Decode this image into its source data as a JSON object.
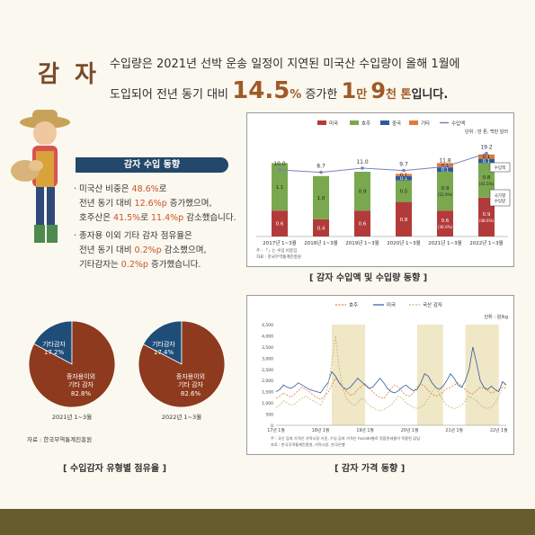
{
  "header": {
    "title": "감 자",
    "line1": "수입량은 2021년 선박 운송 일정이 지연된 미국산 수입량이 올해 1월에",
    "line2_prefix": "도입되어 전년 동기 대비",
    "pct": "14.5",
    "pct_unit": "%",
    "mid_text": "증가한",
    "num1": "1",
    "unit1": "만",
    "num2": "9",
    "unit2": "천 톤",
    "suffix": "입니다."
  },
  "trend": {
    "heading": "감자 수입 동향",
    "bullet1_a": "미국산 비중은 ",
    "bullet1_b": "48.6%",
    "bullet1_c": "로",
    "bullet1_d": "전년 동기 대비 ",
    "bullet1_e": "12.6%p",
    "bullet1_f": " 증가했으며,",
    "bullet1_g": "호주산은 ",
    "bullet1_h": "41.5%",
    "bullet1_i": "로 ",
    "bullet1_j": "11.4%p",
    "bullet1_k": " 감소했습니다.",
    "bullet2_a": "종자용 이외 기타 감자 점유율은",
    "bullet2_b": "전년 동기 대비 ",
    "bullet2_c": "0.2%p",
    "bullet2_d": " 감소했으며,",
    "bullet2_e": "기타감자는 ",
    "bullet2_f": "0.2%p",
    "bullet2_g": " 증가했습니다."
  },
  "captions": {
    "top_chart": "[ 감자 수입액 및 수입량 동향 ]",
    "pies": "[ 수입감자 유형별 점유율 ]",
    "price": "[ 감자 가격 동향 ]"
  },
  "colors": {
    "us": "#b33a3a",
    "au": "#7aa84f",
    "cn": "#2e5a9a",
    "other": "#e07b39",
    "volume": "#7d80b8",
    "pie_main": "#8e3a1e",
    "pie_other": "#1e4d78",
    "domestic": "#c8b56a",
    "shade": "#efe7c6"
  },
  "chart_data": [
    {
      "type": "bar",
      "unit_note": "단위 : 만 톤, 백만 달러",
      "legend": [
        "미국",
        "호주",
        "중국",
        "기타",
        "수입액"
      ],
      "categories": [
        "2017년 1~3월",
        "2018년 1~3월",
        "2019년 1~3월",
        "2020년 1~3월",
        "2021년 1~3월",
        "2022년 1~3월"
      ],
      "series": [
        {
          "name": "미국",
          "values": [
            0.6,
            0.4,
            0.6,
            0.8,
            0.6,
            0.9
          ],
          "labels": [
            "0.6",
            "0.4",
            "0.6",
            "0.8",
            "0.6\n(36.0%)",
            "0.9\n(48.6%)"
          ]
        },
        {
          "name": "호주",
          "values": [
            1.1,
            1.0,
            0.9,
            0.5,
            0.9,
            0.8
          ],
          "labels": [
            "1.1",
            "1.0",
            "0.9",
            "0.5",
            "0.9\n(52.9%)",
            "0.8\n(41.5%)"
          ]
        },
        {
          "name": "중국",
          "values": [
            0,
            0,
            0,
            0.1,
            0.1,
            0.1
          ],
          "labels": [
            "",
            "",
            "",
            "0.1",
            "0.1",
            "0.1"
          ]
        },
        {
          "name": "기타",
          "values": [
            0,
            0,
            0,
            0.05,
            0.1,
            0.1
          ],
          "labels": [
            "",
            "",
            "",
            "0.1",
            "0.1",
            "0.1"
          ]
        }
      ],
      "line": {
        "name": "수입액",
        "values": [
          10.0,
          8.7,
          11.0,
          9.7,
          11.8,
          19.2
        ],
        "labels": [
          "10.0",
          "8.7",
          "11.0",
          "9.7",
          "11.8",
          "19.2"
        ]
      },
      "callouts": [
        "수입액",
        "국가별 수입량"
      ],
      "source": [
        "주 : 「」는 수입 비중임",
        "자료 : 한국무역통계진흥원"
      ]
    },
    {
      "type": "pie",
      "title": "2021년 1~3월",
      "slices": [
        {
          "label": "기타감자",
          "value": 17.2,
          "text": "17.2%"
        },
        {
          "label": "종자용이외 기타 감자",
          "value": 82.8,
          "text": "82.8%"
        }
      ]
    },
    {
      "type": "pie",
      "title": "2022년 1~3월",
      "slices": [
        {
          "label": "기타감자",
          "value": 17.4,
          "text": "17.4%"
        },
        {
          "label": "종자용이외 기타 감자",
          "value": 82.6,
          "text": "82.6%"
        }
      ]
    },
    {
      "type": "line",
      "legend": [
        "호주",
        "미국",
        "국산 감자"
      ],
      "unit_note": "단위 : 원/kg",
      "ylim": [
        0,
        4500
      ],
      "yticks": [
        "4,500",
        "4,000",
        "3,500",
        "3,000",
        "2,500",
        "2,000",
        "1,500",
        "1,000",
        "500",
        "0"
      ],
      "xticks": [
        "17년 1월",
        "18년 1월",
        "19년 1월",
        "20년 1월",
        "21년 1월",
        "22년 1월"
      ],
      "shaded_periods": [
        [
          15,
          24
        ],
        [
          38,
          45
        ],
        [
          51,
          60
        ]
      ],
      "x": [
        0,
        1,
        2,
        3,
        4,
        5,
        6,
        7,
        8,
        9,
        10,
        11,
        12,
        13,
        14,
        15,
        16,
        17,
        18,
        19,
        20,
        21,
        22,
        23,
        24,
        25,
        26,
        27,
        28,
        29,
        30,
        31,
        32,
        33,
        34,
        35,
        36,
        37,
        38,
        39,
        40,
        41,
        42,
        43,
        44,
        45,
        46,
        47,
        48,
        49,
        50,
        51,
        52,
        53,
        54,
        55,
        56,
        57,
        58,
        59,
        60,
        61,
        62
      ],
      "series": [
        {
          "name": "호주",
          "values": [
            1200,
            1300,
            1450,
            1350,
            1250,
            1400,
            1550,
            1700,
            1600,
            1500,
            1350,
            1250,
            1150,
            1300,
            1450,
            1800,
            2100,
            1950,
            1700,
            1500,
            1350,
            1400,
            1600,
            1750,
            1850,
            1700,
            1500,
            1350,
            1250,
            1200,
            1400,
            1650,
            1800,
            1700,
            1500,
            1350,
            1300,
            1450,
            1700,
            1850,
            1750,
            1550,
            1400,
            1300,
            1350,
            1500,
            1650,
            1700,
            1800,
            1900,
            1750,
            1600,
            1450,
            1400,
            1550,
            1700,
            1650,
            1550,
            1450,
            1500,
            1600,
            1700,
            1650
          ]
        },
        {
          "name": "미국",
          "values": [
            1500,
            1600,
            1800,
            1700,
            1650,
            1750,
            1900,
            1800,
            1700,
            1600,
            1550,
            1500,
            1450,
            1700,
            1900,
            2400,
            2200,
            1900,
            1700,
            1600,
            1700,
            1900,
            2100,
            1950,
            1800,
            1650,
            1700,
            1900,
            2100,
            1900,
            1650,
            1500,
            1450,
            1550,
            1700,
            1800,
            1650,
            1550,
            1600,
            1900,
            2300,
            2200,
            1900,
            1700,
            1600,
            1750,
            2000,
            2300,
            2100,
            1800,
            1700,
            2000,
            2500,
            3500,
            2800,
            2000,
            1700,
            1600,
            1750,
            1600,
            1500,
            1950,
            1800
          ]
        },
        {
          "name": "국산 감자",
          "values": [
            800,
            900,
            1100,
            1000,
            900,
            950,
            1100,
            1200,
            1300,
            1200,
            1100,
            1000,
            900,
            1200,
            1800,
            2800,
            4000,
            2600,
            1600,
            1200,
            1000,
            900,
            1000,
            1200,
            1100,
            900,
            800,
            700,
            650,
            700,
            800,
            900,
            1100,
            1300,
            1200,
            1000,
            900,
            800,
            750,
            800,
            950,
            1200,
            1500,
            1700,
            1400,
            1100,
            900,
            800,
            750,
            800,
            900,
            1100,
            1300,
            1200,
            1100,
            900,
            800,
            750,
            800,
            1000,
            1300,
            1700,
            1900
          ]
        }
      ],
      "source": [
        "주 : 국산 감자 가격은 가락시장 기준, 수입 감자 가격은 hscode별로 정합관세율이 적용된 값임",
        "자료 : 한국무역통계진흥원, 가락시장, 한국은행"
      ]
    }
  ],
  "pie_source": "자료 : 한국무역통계진흥원"
}
